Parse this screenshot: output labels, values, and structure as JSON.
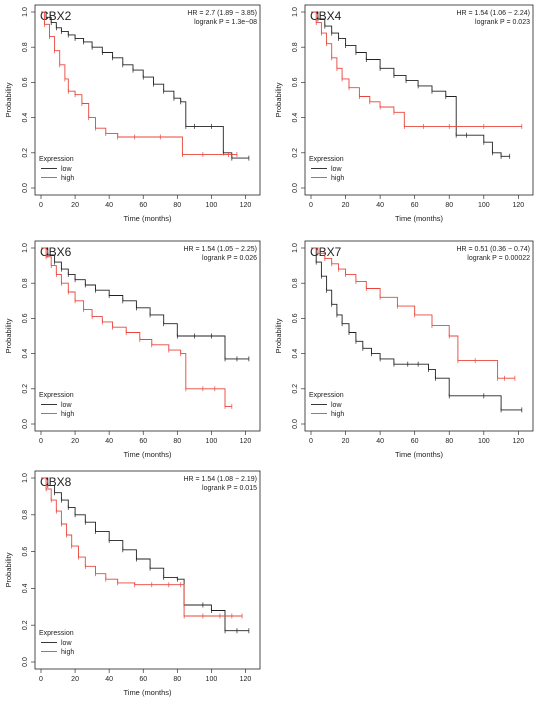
{
  "colors": {
    "low": "#222222",
    "high": "#e8453c",
    "axis": "#333333",
    "frame": "#222222"
  },
  "chart_data": [
    {
      "type": "line",
      "title": "CBX2",
      "hr_text": "HR = 2.7 (1.89 − 3.85)",
      "p_text": "logrank P = 1.3e−08",
      "xlabel": "Time (months)",
      "ylabel": "Probability",
      "xlim": [
        0,
        125
      ],
      "ylim": [
        0,
        1.0
      ],
      "xticks": [
        0,
        20,
        40,
        60,
        80,
        100,
        120
      ],
      "yticks": [
        0.0,
        0.2,
        0.4,
        0.6,
        0.8,
        1.0
      ],
      "legend_title": "Expression",
      "legend_position": "bottom-left",
      "series": [
        {
          "name": "low",
          "x": [
            0,
            3,
            6,
            9,
            12,
            16,
            20,
            25,
            30,
            36,
            42,
            48,
            54,
            60,
            66,
            72,
            78,
            82,
            85,
            90,
            100,
            107,
            112,
            122
          ],
          "y": [
            1.0,
            0.97,
            0.94,
            0.91,
            0.89,
            0.87,
            0.85,
            0.83,
            0.8,
            0.77,
            0.74,
            0.7,
            0.67,
            0.63,
            0.59,
            0.55,
            0.51,
            0.49,
            0.35,
            0.35,
            0.35,
            0.2,
            0.17,
            0.17
          ]
        },
        {
          "name": "high",
          "x": [
            0,
            2,
            5,
            8,
            11,
            14,
            16,
            20,
            24,
            28,
            32,
            38,
            45,
            55,
            70,
            83,
            95,
            110,
            115
          ],
          "y": [
            1.0,
            0.93,
            0.86,
            0.78,
            0.7,
            0.62,
            0.55,
            0.53,
            0.48,
            0.4,
            0.34,
            0.31,
            0.29,
            0.29,
            0.29,
            0.19,
            0.19,
            0.19,
            0.19
          ]
        }
      ]
    },
    {
      "type": "line",
      "title": "CBX4",
      "hr_text": "HR = 1.54 (1.06 − 2.24)",
      "p_text": "logrank P = 0.023",
      "xlabel": "Time (months)",
      "ylabel": "Probability",
      "xlim": [
        0,
        125
      ],
      "ylim": [
        0,
        1.0
      ],
      "xticks": [
        0,
        20,
        40,
        60,
        80,
        100,
        120
      ],
      "yticks": [
        0.0,
        0.2,
        0.4,
        0.6,
        0.8,
        1.0
      ],
      "legend_title": "Expression",
      "legend_position": "bottom-left",
      "series": [
        {
          "name": "low",
          "x": [
            0,
            4,
            8,
            12,
            16,
            20,
            26,
            32,
            40,
            48,
            55,
            62,
            70,
            78,
            84,
            90,
            100,
            105,
            110,
            115
          ],
          "y": [
            1.0,
            0.96,
            0.92,
            0.88,
            0.85,
            0.81,
            0.77,
            0.73,
            0.68,
            0.64,
            0.61,
            0.58,
            0.55,
            0.52,
            0.3,
            0.3,
            0.26,
            0.2,
            0.18,
            0.18
          ]
        },
        {
          "name": "high",
          "x": [
            0,
            3,
            6,
            9,
            12,
            15,
            18,
            22,
            28,
            34,
            40,
            48,
            54,
            65,
            80,
            100,
            122
          ],
          "y": [
            1.0,
            0.94,
            0.88,
            0.82,
            0.74,
            0.68,
            0.62,
            0.57,
            0.52,
            0.49,
            0.46,
            0.43,
            0.35,
            0.35,
            0.35,
            0.35,
            0.35
          ]
        }
      ]
    },
    {
      "type": "line",
      "title": "CBX6",
      "hr_text": "HR = 1.54 (1.05 − 2.25)",
      "p_text": "logrank P = 0.026",
      "xlabel": "Time (months)",
      "ylabel": "Probability",
      "xlim": [
        0,
        125
      ],
      "ylim": [
        0,
        1.0
      ],
      "xticks": [
        0,
        20,
        40,
        60,
        80,
        100,
        120
      ],
      "yticks": [
        0.0,
        0.2,
        0.4,
        0.6,
        0.8,
        1.0
      ],
      "legend_title": "Expression",
      "legend_position": "bottom-left",
      "series": [
        {
          "name": "low",
          "x": [
            0,
            4,
            8,
            12,
            16,
            20,
            26,
            32,
            40,
            48,
            56,
            64,
            72,
            80,
            90,
            100,
            108,
            115,
            122
          ],
          "y": [
            1.0,
            0.96,
            0.92,
            0.88,
            0.85,
            0.82,
            0.79,
            0.76,
            0.73,
            0.7,
            0.66,
            0.62,
            0.57,
            0.5,
            0.5,
            0.5,
            0.37,
            0.37,
            0.37
          ]
        },
        {
          "name": "high",
          "x": [
            0,
            3,
            6,
            9,
            12,
            16,
            20,
            25,
            30,
            36,
            42,
            50,
            58,
            65,
            75,
            82,
            85,
            95,
            102,
            108,
            112
          ],
          "y": [
            1.0,
            0.95,
            0.9,
            0.85,
            0.8,
            0.75,
            0.7,
            0.65,
            0.61,
            0.58,
            0.55,
            0.52,
            0.48,
            0.45,
            0.42,
            0.4,
            0.2,
            0.2,
            0.2,
            0.1,
            0.1
          ]
        }
      ]
    },
    {
      "type": "line",
      "title": "CBX7",
      "hr_text": "HR = 0.51 (0.36 − 0.74)",
      "p_text": "logrank P = 0.00022",
      "xlabel": "Time (months)",
      "ylabel": "Probability",
      "xlim": [
        0,
        125
      ],
      "ylim": [
        0,
        1.0
      ],
      "xticks": [
        0,
        20,
        40,
        60,
        80,
        100,
        120
      ],
      "yticks": [
        0.0,
        0.2,
        0.4,
        0.6,
        0.8,
        1.0
      ],
      "legend_title": "Expression",
      "legend_position": "bottom-left",
      "series": [
        {
          "name": "low",
          "x": [
            0,
            3,
            6,
            9,
            12,
            15,
            18,
            22,
            26,
            30,
            35,
            40,
            48,
            56,
            62,
            68,
            72,
            80,
            100,
            110,
            122
          ],
          "y": [
            1.0,
            0.92,
            0.84,
            0.76,
            0.68,
            0.62,
            0.57,
            0.52,
            0.47,
            0.43,
            0.4,
            0.37,
            0.34,
            0.34,
            0.34,
            0.31,
            0.26,
            0.16,
            0.16,
            0.08,
            0.08
          ]
        },
        {
          "name": "high",
          "x": [
            0,
            4,
            8,
            12,
            16,
            20,
            26,
            32,
            40,
            50,
            60,
            70,
            80,
            85,
            95,
            108,
            112,
            118
          ],
          "y": [
            1.0,
            0.97,
            0.94,
            0.91,
            0.88,
            0.85,
            0.81,
            0.77,
            0.72,
            0.67,
            0.62,
            0.56,
            0.5,
            0.36,
            0.36,
            0.26,
            0.26,
            0.26
          ]
        }
      ]
    },
    {
      "type": "line",
      "title": "CBX8",
      "hr_text": "HR = 1.54 (1.08 − 2.19)",
      "p_text": "logrank P = 0.015",
      "xlabel": "Time (months)",
      "ylabel": "Probability",
      "xlim": [
        0,
        125
      ],
      "ylim": [
        0,
        1.0
      ],
      "xticks": [
        0,
        20,
        40,
        60,
        80,
        100,
        120
      ],
      "yticks": [
        0.0,
        0.2,
        0.4,
        0.6,
        0.8,
        1.0
      ],
      "legend_title": "Expression",
      "legend_position": "bottom-left",
      "series": [
        {
          "name": "low",
          "x": [
            0,
            4,
            8,
            12,
            16,
            20,
            26,
            32,
            40,
            48,
            56,
            64,
            72,
            80,
            84,
            95,
            100,
            108,
            115,
            122
          ],
          "y": [
            1.0,
            0.96,
            0.92,
            0.88,
            0.84,
            0.8,
            0.76,
            0.71,
            0.66,
            0.61,
            0.56,
            0.51,
            0.46,
            0.45,
            0.31,
            0.31,
            0.28,
            0.17,
            0.17,
            0.17
          ]
        },
        {
          "name": "high",
          "x": [
            0,
            3,
            6,
            9,
            12,
            15,
            18,
            22,
            26,
            32,
            38,
            45,
            55,
            65,
            75,
            82,
            84,
            95,
            105,
            112,
            118
          ],
          "y": [
            1.0,
            0.94,
            0.88,
            0.82,
            0.75,
            0.69,
            0.63,
            0.57,
            0.52,
            0.48,
            0.45,
            0.43,
            0.42,
            0.42,
            0.42,
            0.42,
            0.25,
            0.25,
            0.25,
            0.25,
            0.25
          ]
        }
      ]
    }
  ]
}
